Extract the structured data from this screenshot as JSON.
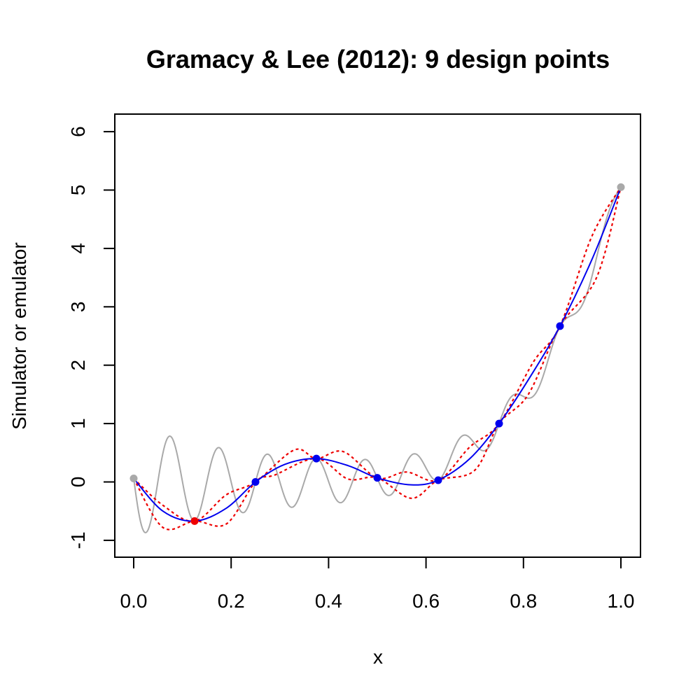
{
  "chart_data": {
    "type": "line",
    "title": "Gramacy & Lee (2012):  9 design points",
    "xlabel": "x",
    "ylabel": "Simulator or emulator",
    "xlim": [
      0,
      1
    ],
    "ylim": [
      -1,
      6
    ],
    "xticks": [
      0.0,
      0.2,
      0.4,
      0.6,
      0.8,
      1.0
    ],
    "xtick_labels": [
      "0.0",
      "0.2",
      "0.4",
      "0.6",
      "0.8",
      "1.0"
    ],
    "yticks": [
      -1,
      0,
      1,
      2,
      3,
      4,
      5,
      6
    ],
    "ytick_labels": [
      "-1",
      "0",
      "1",
      "2",
      "3",
      "4",
      "5",
      "6"
    ],
    "grid": false,
    "series": [
      {
        "role": "simulator",
        "color": "#a9a9a9",
        "style": "solid",
        "function": "gramacy-lee-2012"
      },
      {
        "role": "emulator-mean",
        "color": "#0000ee",
        "style": "solid",
        "x": [
          0.0,
          0.06,
          0.125,
          0.19,
          0.25,
          0.31,
          0.375,
          0.44,
          0.5,
          0.57,
          0.625,
          0.69,
          0.75,
          0.81,
          0.875,
          0.94,
          1.0
        ],
        "y": [
          0.06,
          -0.5,
          -0.67,
          -0.45,
          0.0,
          0.3,
          0.4,
          0.28,
          0.07,
          -0.05,
          0.03,
          0.4,
          1.0,
          1.75,
          2.67,
          3.8,
          5.05
        ]
      },
      {
        "role": "upper-bound",
        "color": "#ee0000",
        "style": "dotted",
        "x": [
          0.0,
          0.06,
          0.125,
          0.19,
          0.25,
          0.33,
          0.375,
          0.43,
          0.5,
          0.56,
          0.625,
          0.69,
          0.75,
          0.82,
          0.875,
          0.94,
          1.0
        ],
        "y": [
          0.06,
          -0.4,
          -0.67,
          -0.22,
          0.0,
          0.55,
          0.4,
          0.52,
          0.07,
          0.17,
          0.03,
          0.6,
          1.0,
          2.05,
          2.67,
          4.2,
          5.05
        ]
      },
      {
        "role": "lower-bound",
        "color": "#ee0000",
        "style": "dotted",
        "x": [
          0.0,
          0.06,
          0.125,
          0.19,
          0.25,
          0.29,
          0.375,
          0.44,
          0.5,
          0.57,
          0.625,
          0.7,
          0.75,
          0.81,
          0.875,
          0.95,
          1.0
        ],
        "y": [
          0.06,
          -0.78,
          -0.67,
          -0.72,
          0.0,
          0.12,
          0.4,
          0.05,
          0.07,
          -0.28,
          0.03,
          0.2,
          1.0,
          1.5,
          2.67,
          3.5,
          5.05
        ]
      }
    ],
    "points": [
      {
        "x": 0.0,
        "y": 0.06,
        "color": "#a9a9a9"
      },
      {
        "x": 0.125,
        "y": -0.67,
        "color": "#ee0000"
      },
      {
        "x": 0.25,
        "y": 0.0,
        "color": "#0000ee"
      },
      {
        "x": 0.375,
        "y": 0.4,
        "color": "#0000ee"
      },
      {
        "x": 0.5,
        "y": 0.07,
        "color": "#0000ee"
      },
      {
        "x": 0.625,
        "y": 0.03,
        "color": "#0000ee"
      },
      {
        "x": 0.75,
        "y": 1.0,
        "color": "#0000ee"
      },
      {
        "x": 0.875,
        "y": 2.67,
        "color": "#0000ee"
      },
      {
        "x": 1.0,
        "y": 5.05,
        "color": "#a9a9a9"
      }
    ]
  }
}
